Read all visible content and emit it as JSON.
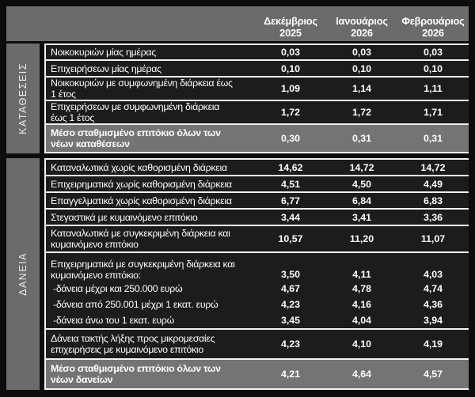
{
  "chart_data": {
    "type": "table",
    "columns": [
      "Δεκέμβριος 2025",
      "Ιανουάριος 2026",
      "Φεβρουάριος 2026"
    ],
    "sections": [
      {
        "label": "ΚΑΤΑΘΕΣΕΙΣ",
        "rows": [
          {
            "label": "Νοικοκυριών μίας ημέρας",
            "values": [
              "0,03",
              "0,03",
              "0,03"
            ]
          },
          {
            "label": "Επιχειρήσεων μίας ημέρας",
            "values": [
              "0,10",
              "0,10",
              "0,10"
            ]
          },
          {
            "label": "Νοικοκυριών με συμφωνημένη διάρκεια έως\n1 έτος",
            "values": [
              "1,09",
              "1,14",
              "1,11"
            ]
          },
          {
            "label": "Επιχειρήσεων με συμφωνημένη διάρκεια\nέως 1 έτος",
            "values": [
              "1,72",
              "1,72",
              "1,71"
            ]
          },
          {
            "label": "Μέσο σταθμισμένο επιτόκιο όλων των\nνέων καταθέσεων",
            "values": [
              "0,30",
              "0,31",
              "0,31"
            ],
            "summary": true
          }
        ]
      },
      {
        "label": "ΔΑΝΕΙΑ",
        "rows": [
          {
            "label": "Καταναλωτικά χωρίς καθορισμένη διάρκεια",
            "values": [
              "14,62",
              "14,72",
              "14,72"
            ]
          },
          {
            "label": "Επιχειρηματικά χωρίς καθορισμένη διάρκεια",
            "values": [
              "4,51",
              "4,50",
              "4,49"
            ]
          },
          {
            "label": "Επαγγελματικά χωρίς καθορισμένη διάρκεια",
            "values": [
              "6,77",
              "6,84",
              "6,83"
            ]
          },
          {
            "label": "Στεγαστικά με κυμαινόμενο επιτόκιο",
            "values": [
              "3,44",
              "3,41",
              "3,36"
            ]
          },
          {
            "label": "Καταναλωτικά με συγκεκριμένη διάρκεια και\nκυμαινόμενο επιτόκιο",
            "values": [
              "10,57",
              "11,20",
              "11,07"
            ]
          },
          {
            "label": "Επιχειρηματικά με συγκεκριμένη διάρκεια και\nκυμαινόμενο επιτόκιο:",
            "values": [
              "3,50",
              "4,11",
              "4,03"
            ]
          },
          {
            "label": "-δάνεια μέχρι και 250.000 ευρώ",
            "values": [
              "4,67",
              "4,78",
              "4,74"
            ],
            "sub": true
          },
          {
            "label": "-δάνεια από 250.001 μέχρι 1 εκατ. ευρώ",
            "values": [
              "4,23",
              "4,16",
              "4,36"
            ],
            "sub": true
          },
          {
            "label": "-δάνεια άνω του 1 εκατ. ευρώ",
            "values": [
              "3,45",
              "4,04",
              "3,94"
            ],
            "sub": true
          },
          {
            "label": "Δάνεια τακτής λήξης προς μικρομεσαίες\nεπιχειρήσεις με κυμαινόμενο επιτόκιο",
            "values": [
              "4,23",
              "4,10",
              "4,19"
            ]
          },
          {
            "label": "Μέσο σταθμισμένο επιτόκιο όλων των\nνέων δανείων",
            "values": [
              "4,21",
              "4,64",
              "4,57"
            ],
            "summary": true
          }
        ]
      }
    ],
    "colors": {
      "background": "#0c0c0c",
      "header_bg": "#6b6b6b",
      "sidebar_bg": "#6b6b6b",
      "row_bg": "#1c1c1c",
      "summary_bg": "#747474",
      "separator": "#f2f2f2",
      "text": "#ffffff"
    }
  }
}
